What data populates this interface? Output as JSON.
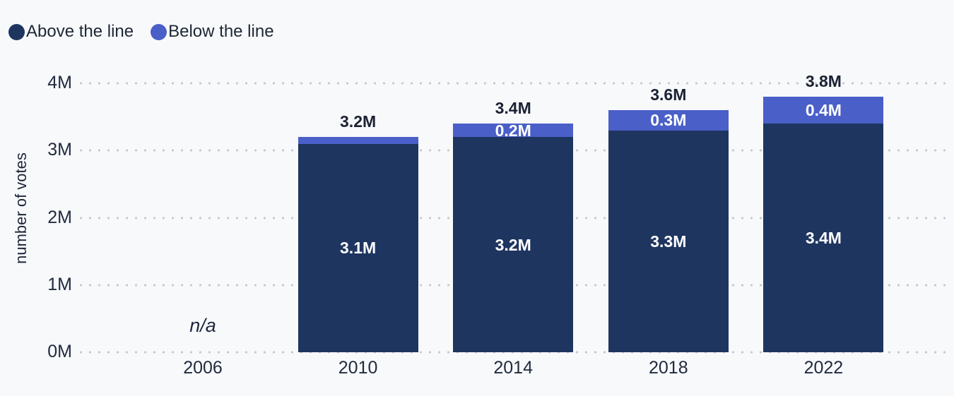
{
  "chart_data": {
    "type": "bar",
    "stacked": true,
    "ylabel": "number of votes",
    "categories": [
      "2006",
      "2010",
      "2014",
      "2018",
      "2022"
    ],
    "series": [
      {
        "name": "Above the line",
        "color": "#1e3560",
        "values": [
          null,
          3.1,
          3.2,
          3.3,
          3.4
        ],
        "labels": [
          "",
          "3.1M",
          "3.2M",
          "3.3M",
          "3.4M"
        ]
      },
      {
        "name": "Below the line",
        "color": "#4a5fc8",
        "values": [
          null,
          0.1,
          0.2,
          0.3,
          0.4
        ],
        "labels": [
          "",
          "",
          "0.2M",
          "0.3M",
          "0.4M"
        ]
      }
    ],
    "totals": [
      null,
      3.2,
      3.4,
      3.6,
      3.8
    ],
    "total_labels": [
      "",
      "3.2M",
      "3.4M",
      "3.6M",
      "3.8M"
    ],
    "missing_label": "n/a",
    "yticks": [
      "0M",
      "1M",
      "2M",
      "3M",
      "4M"
    ],
    "ytick_values": [
      0,
      1,
      2,
      3,
      4
    ],
    "ylim": [
      0,
      4
    ],
    "legend": [
      "Above the line",
      "Below the line"
    ],
    "legend_position": "top-left",
    "grid": "dotted-horizontal",
    "colors": {
      "background": "#f8f9fb",
      "above_segment": "#1e3560",
      "below_segment": "#4a5fc8",
      "axis_text": "#212b3f",
      "value_text_dark": "#1a2233",
      "value_text_light": "#ffffff",
      "gridline_dots": "#c5c8ce"
    }
  }
}
